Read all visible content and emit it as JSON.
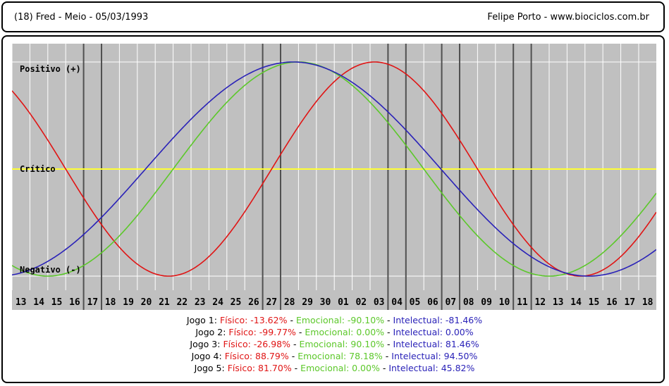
{
  "header": {
    "left_text": "(18)  Fred - Meio -  05/03/1993",
    "right_text": "Felipe Porto   -   www.biociclos.com.br"
  },
  "colors": {
    "background_plot": "#c0c0c0",
    "grid": "#ffffff",
    "game_marker": "#505050",
    "critical_line": "#ffff33",
    "fisico": "#e01414",
    "emocional": "#5cc82a",
    "intelectual": "#2a22b8"
  },
  "chart_data": {
    "type": "line",
    "x_tick_labels": [
      "13",
      "14",
      "15",
      "16",
      "17",
      "18",
      "19",
      "20",
      "21",
      "22",
      "23",
      "24",
      "25",
      "26",
      "27",
      "28",
      "29",
      "30",
      "01",
      "02",
      "03",
      "04",
      "05",
      "06",
      "07",
      "08",
      "09",
      "10",
      "11",
      "12",
      "13",
      "14",
      "15",
      "16",
      "17",
      "18"
    ],
    "y_labels": {
      "positive": "Positivo (+)",
      "critical": "Crítico",
      "negative": "Negativo (-)"
    },
    "ylim": [
      -100,
      100
    ],
    "grid": true,
    "game_markers_at_x": [
      4,
      5,
      14,
      15,
      21,
      22,
      24,
      25,
      28,
      29
    ],
    "series": [
      {
        "key": "fisico",
        "period": 23,
        "values": [
          73.1,
          51.96,
          26.98,
          0,
          -26.98,
          -51.96,
          -73.1,
          -88.79,
          -97.91,
          -99.77,
          -94.22,
          -81.7,
          -63.12,
          -39.84,
          -13.62,
          13.62,
          39.84,
          63.12,
          81.7,
          94.22,
          99.77,
          97.91,
          88.79,
          73.1,
          51.96,
          26.98,
          0,
          -26.98,
          -51.96,
          -73.1,
          -88.79,
          -97.91,
          -99.77,
          -94.22,
          -81.7,
          -63.12
        ]
      },
      {
        "key": "emocional",
        "period": 28,
        "values": [
          -90.1,
          -97.49,
          -100,
          -97.49,
          -90.1,
          -78.18,
          -62.35,
          -43.39,
          -22.25,
          0,
          22.25,
          43.39,
          62.35,
          78.18,
          90.1,
          97.49,
          100,
          97.49,
          90.1,
          78.18,
          62.35,
          43.39,
          22.25,
          0,
          -22.25,
          -43.39,
          -62.35,
          -78.18,
          -90.1,
          -97.49,
          -100,
          -97.49,
          -90.1,
          -78.18,
          -62.35,
          -43.39
        ]
      },
      {
        "key": "intelectual",
        "period": 33,
        "values": [
          -98.86,
          -96.58,
          -91.0,
          -81.46,
          -69.01,
          -54.06,
          -37.17,
          -18.93,
          0,
          18.93,
          37.17,
          54.06,
          69.01,
          81.46,
          91.0,
          96.58,
          98.86,
          97.72,
          93.2,
          85.53,
          74.98,
          61.94,
          46.84,
          30.17,
          12.5,
          -5.66,
          -23.64,
          -40.63,
          -56.36,
          -69.96,
          -81.46,
          -90.1,
          -96.58,
          -99.66,
          -99.2,
          -95.05
        ]
      }
    ]
  },
  "stats": [
    {
      "label": "Jogo 1:",
      "fisico": "Físico: -13.62%",
      "emocional": "Emocional: -90.10%",
      "intelectual": "Intelectual: -81.46%"
    },
    {
      "label": "Jogo 2:",
      "fisico": "Físico: -99.77%",
      "emocional": "Emocional: 0.00%",
      "intelectual": "Intelectual: 0.00%"
    },
    {
      "label": "Jogo 3:",
      "fisico": "Físico: -26.98%",
      "emocional": "Emocional: 90.10%",
      "intelectual": "Intelectual: 81.46%"
    },
    {
      "label": "Jogo 4:",
      "fisico": "Físico: 88.79%",
      "emocional": "Emocional: 78.18%",
      "intelectual": "Intelectual: 94.50%"
    },
    {
      "label": "Jogo 5:",
      "fisico": "Físico: 81.70%",
      "emocional": "Emocional: 0.00%",
      "intelectual": "Intelectual: 45.82%"
    }
  ],
  "separator": " - "
}
